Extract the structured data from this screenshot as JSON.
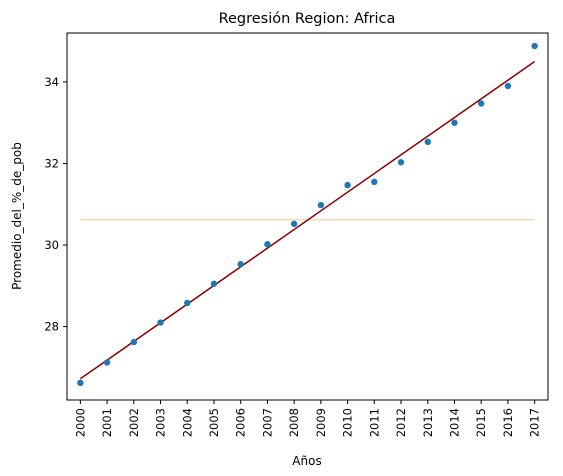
{
  "chart_data": {
    "type": "scatter",
    "title": "Regresión Region: Africa",
    "xlabel": "Años",
    "ylabel": "Promedio_del_%_de_pob",
    "x": [
      2000,
      2001,
      2002,
      2003,
      2004,
      2005,
      2006,
      2007,
      2008,
      2009,
      2010,
      2011,
      2012,
      2013,
      2014,
      2015,
      2016,
      2017
    ],
    "x_tick_labels": [
      "2000",
      "2001",
      "2002",
      "2003",
      "2004",
      "2005",
      "2006",
      "2007",
      "2008",
      "2009",
      "2010",
      "2011",
      "2012",
      "2013",
      "2014",
      "2015",
      "2016",
      "2017"
    ],
    "y_ticks": [
      28,
      30,
      32,
      34
    ],
    "y_tick_labels": [
      "28",
      "30",
      "32",
      "34"
    ],
    "xlim": [
      1999.5,
      2017.5
    ],
    "ylim": [
      26.2,
      35.2
    ],
    "grid": false,
    "series": [
      {
        "kind": "points",
        "color": "#1f77b4",
        "y": [
          26.62,
          27.12,
          27.62,
          28.1,
          28.58,
          29.05,
          29.53,
          30.02,
          30.52,
          30.98,
          31.47,
          31.55,
          32.03,
          32.53,
          33.0,
          33.47,
          33.9,
          34.88
        ]
      },
      {
        "kind": "regression-line",
        "color": "#8b0000",
        "x": [
          2000,
          2017
        ],
        "y": [
          26.72,
          34.5
        ]
      },
      {
        "kind": "mean-line",
        "color": "#fcd9b4",
        "x": [
          2000,
          2017
        ],
        "y": [
          30.62,
          30.62
        ]
      }
    ]
  }
}
